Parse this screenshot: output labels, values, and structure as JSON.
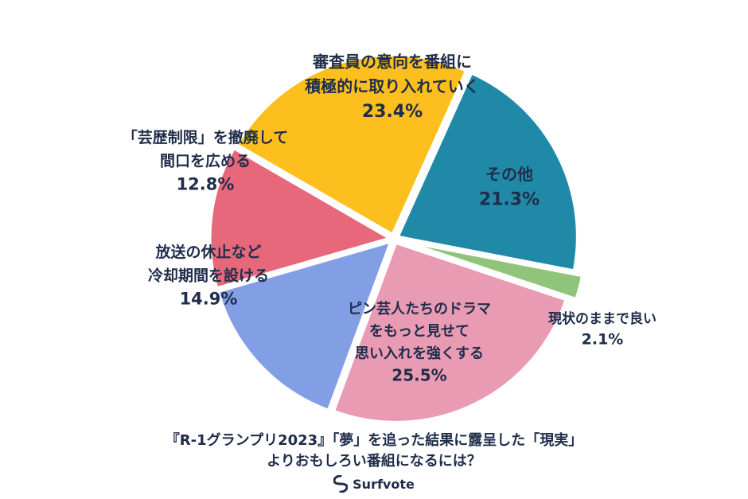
{
  "chart_data": {
    "type": "pie",
    "slices": [
      {
        "label_lines": [
          "審査員の意向を番組に",
          "積極的に取り入れていく"
        ],
        "value_label": "23.4%",
        "value": 23.4,
        "color": "#FCBF1E"
      },
      {
        "label_lines": [
          "その他"
        ],
        "value_label": "21.3%",
        "value": 21.3,
        "color": "#2089A8"
      },
      {
        "label_lines": [
          "現状のままで良い"
        ],
        "value_label": "2.1%",
        "value": 2.1,
        "color": "#8FC47A"
      },
      {
        "label_lines": [
          "ピン芸人たちのドラマ",
          "をもっと見せて",
          "思い入れを強くする"
        ],
        "value_label": "25.5%",
        "value": 25.5,
        "color": "#E99BB3"
      },
      {
        "label_lines": [
          "放送の休止など",
          "冷却期間を設ける"
        ],
        "value_label": "14.9%",
        "value": 14.9,
        "color": "#829FE6"
      },
      {
        "label_lines": [
          "「芸歴制限」を撤廃して",
          "間口を広める"
        ],
        "value_label": "12.8%",
        "value": 12.8,
        "color": "#E7687A"
      }
    ]
  },
  "title": {
    "line1": "『R-1グランプリ2023』「夢」を追った結果に露呈した「現実」",
    "line2": "よりおもしろい番組になるには？"
  },
  "brand": {
    "name": "Surfvote",
    "logo_icon": "surfvote-logo-icon",
    "color": "#1f2d4a"
  }
}
